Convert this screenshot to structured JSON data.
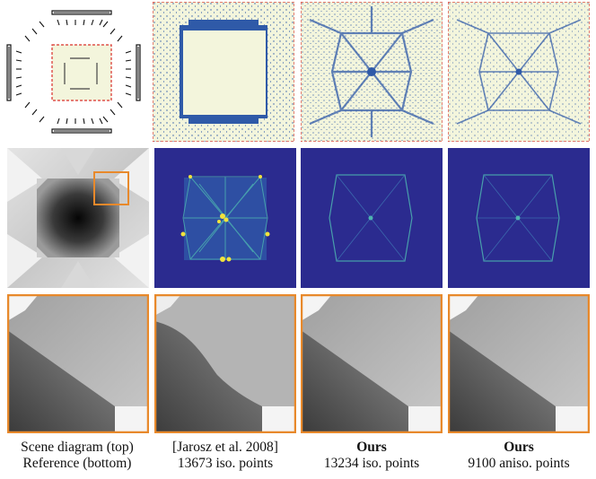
{
  "columns": [
    {
      "caption_line1": "Scene diagram (top)",
      "caption_line2": "Reference (bottom)",
      "bold_title": false
    },
    {
      "caption_line1": "[Jarosz et al. 2008]",
      "caption_line2": "13673 iso. points",
      "bold_title": false
    },
    {
      "caption_line1": "Ours",
      "caption_line2": "13234 iso. points",
      "bold_title": true
    },
    {
      "caption_line1": "Ours",
      "caption_line2": "9100 aniso. points",
      "bold_title": true
    }
  ],
  "colors": {
    "point_blue": "#2f5aa8",
    "heatmap_bg": "#2b2b8f",
    "highlight_orange": "#e8892b",
    "diagram_red_dashes": "#d9302a",
    "plane_fill": "#f3f5dc"
  }
}
